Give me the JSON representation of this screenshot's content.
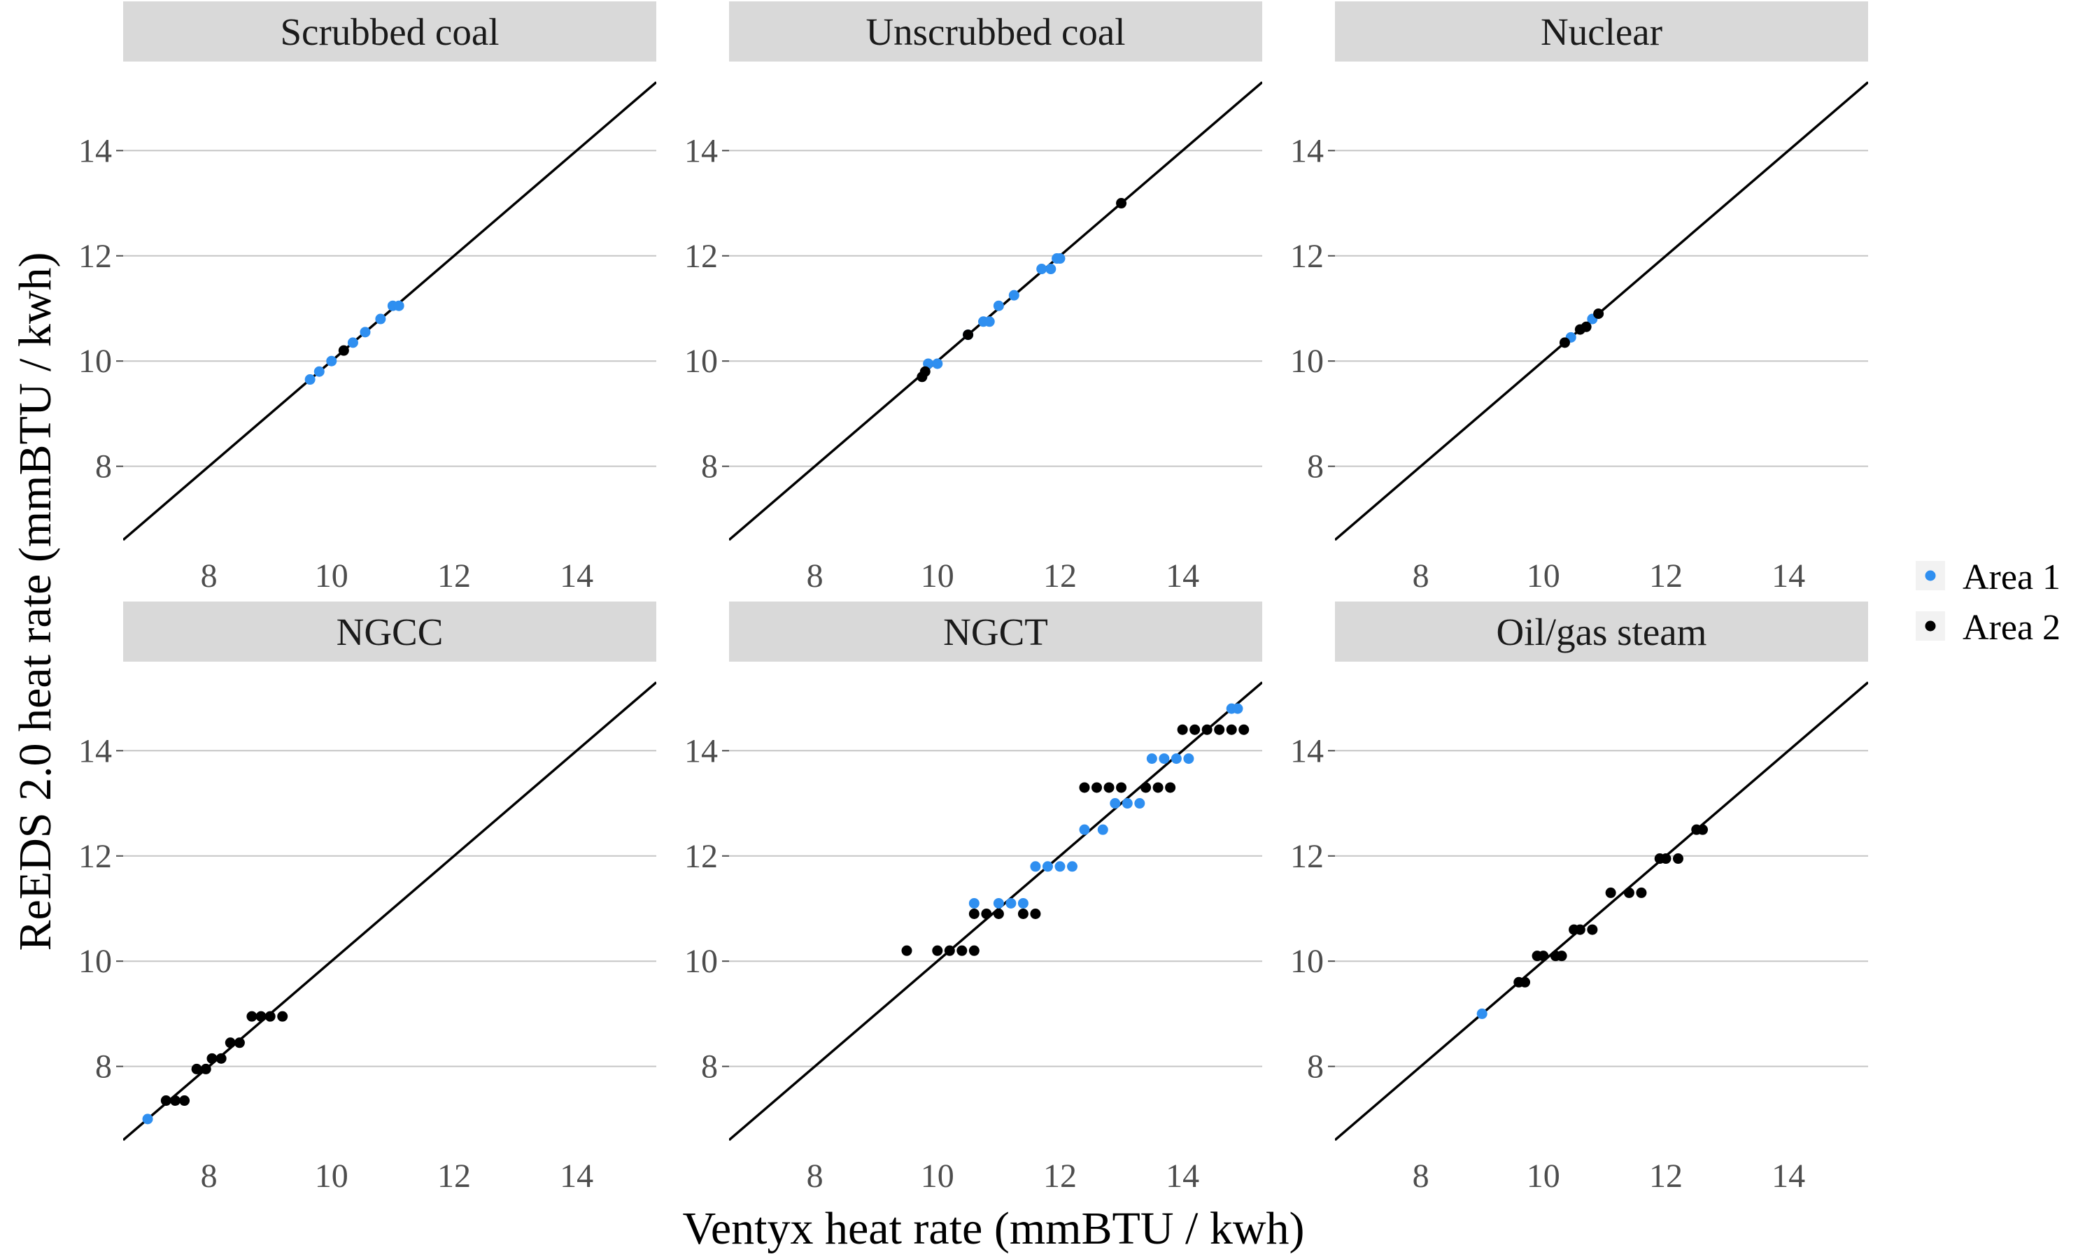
{
  "chart_data": {
    "type": "scatter",
    "xlabel": "Ventyx heat rate (mmBTU / kwh)",
    "ylabel": "ReEDS 2.0 heat rate (mmBTU / kwh)",
    "xlim": [
      6.6,
      15.3
    ],
    "ylim": [
      6.4,
      15.4
    ],
    "x_ticks": [
      8,
      10,
      12,
      14
    ],
    "y_ticks": [
      8,
      10,
      12,
      14
    ],
    "grid": "horizontal major lines",
    "reference_line": "y = x",
    "legend_position": "right",
    "series_style": [
      {
        "name": "Area 1",
        "color": "#2f8ff0"
      },
      {
        "name": "Area 2",
        "color": "#000000"
      }
    ],
    "panels": [
      {
        "title": "Scrubbed coal",
        "series": [
          {
            "name": "Area 1",
            "points": [
              [
                9.65,
                9.65
              ],
              [
                9.8,
                9.8
              ],
              [
                10.0,
                10.0
              ],
              [
                10.35,
                10.35
              ],
              [
                10.55,
                10.55
              ],
              [
                10.8,
                10.8
              ],
              [
                11.0,
                11.05
              ],
              [
                11.1,
                11.05
              ]
            ]
          },
          {
            "name": "Area 2",
            "points": [
              [
                10.2,
                10.2
              ]
            ]
          }
        ]
      },
      {
        "title": "Unscrubbed coal",
        "series": [
          {
            "name": "Area 1",
            "points": [
              [
                9.85,
                9.95
              ],
              [
                10.0,
                9.95
              ],
              [
                10.5,
                10.5
              ],
              [
                10.75,
                10.75
              ],
              [
                10.85,
                10.75
              ],
              [
                11.0,
                11.05
              ],
              [
                11.25,
                11.25
              ],
              [
                11.7,
                11.75
              ],
              [
                11.85,
                11.75
              ],
              [
                11.95,
                11.95
              ],
              [
                12.0,
                11.95
              ]
            ]
          },
          {
            "name": "Area 2",
            "points": [
              [
                9.75,
                9.7
              ],
              [
                9.8,
                9.8
              ],
              [
                10.5,
                10.5
              ],
              [
                13.0,
                13.0
              ]
            ]
          }
        ]
      },
      {
        "title": "Nuclear",
        "series": [
          {
            "name": "Area 1",
            "points": [
              [
                10.45,
                10.45
              ],
              [
                10.8,
                10.8
              ]
            ]
          },
          {
            "name": "Area 2",
            "points": [
              [
                10.35,
                10.35
              ],
              [
                10.6,
                10.6
              ],
              [
                10.7,
                10.65
              ],
              [
                10.9,
                10.9
              ]
            ]
          }
        ]
      },
      {
        "title": "NGCC",
        "series": [
          {
            "name": "Area 1",
            "points": [
              [
                7.0,
                7.0
              ]
            ]
          },
          {
            "name": "Area 2",
            "points": [
              [
                7.3,
                7.35
              ],
              [
                7.45,
                7.35
              ],
              [
                7.6,
                7.35
              ],
              [
                7.8,
                7.95
              ],
              [
                7.95,
                7.95
              ],
              [
                8.05,
                8.15
              ],
              [
                8.2,
                8.15
              ],
              [
                8.35,
                8.45
              ],
              [
                8.5,
                8.45
              ],
              [
                8.7,
                8.95
              ],
              [
                8.85,
                8.95
              ],
              [
                9.0,
                8.95
              ],
              [
                9.2,
                8.95
              ]
            ]
          }
        ]
      },
      {
        "title": "NGCT",
        "series": [
          {
            "name": "Area 1",
            "points": [
              [
                10.6,
                11.1
              ],
              [
                11.0,
                11.1
              ],
              [
                11.2,
                11.1
              ],
              [
                11.4,
                11.1
              ],
              [
                11.6,
                11.8
              ],
              [
                11.8,
                11.8
              ],
              [
                12.0,
                11.8
              ],
              [
                12.2,
                11.8
              ],
              [
                12.4,
                12.5
              ],
              [
                12.7,
                12.5
              ],
              [
                12.9,
                13.0
              ],
              [
                13.1,
                13.0
              ],
              [
                13.3,
                13.0
              ],
              [
                13.5,
                13.85
              ],
              [
                13.7,
                13.85
              ],
              [
                13.9,
                13.85
              ],
              [
                14.1,
                13.85
              ],
              [
                14.8,
                14.8
              ],
              [
                14.9,
                14.8
              ]
            ]
          },
          {
            "name": "Area 2",
            "points": [
              [
                9.5,
                10.2
              ],
              [
                10.0,
                10.2
              ],
              [
                10.2,
                10.2
              ],
              [
                10.4,
                10.2
              ],
              [
                10.6,
                10.2
              ],
              [
                10.6,
                10.9
              ],
              [
                10.8,
                10.9
              ],
              [
                11.0,
                10.9
              ],
              [
                11.4,
                10.9
              ],
              [
                11.6,
                10.9
              ],
              [
                12.4,
                13.3
              ],
              [
                12.6,
                13.3
              ],
              [
                12.8,
                13.3
              ],
              [
                13.0,
                13.3
              ],
              [
                13.4,
                13.3
              ],
              [
                13.6,
                13.3
              ],
              [
                13.8,
                13.3
              ],
              [
                14.0,
                14.4
              ],
              [
                14.2,
                14.4
              ],
              [
                14.4,
                14.4
              ],
              [
                14.6,
                14.4
              ],
              [
                14.8,
                14.4
              ],
              [
                15.0,
                14.4
              ]
            ]
          }
        ]
      },
      {
        "title": "Oil/gas steam",
        "series": [
          {
            "name": "Area 1",
            "points": [
              [
                9.0,
                9.0
              ]
            ]
          },
          {
            "name": "Area 2",
            "points": [
              [
                9.6,
                9.6
              ],
              [
                9.7,
                9.6
              ],
              [
                9.9,
                10.1
              ],
              [
                10.0,
                10.1
              ],
              [
                10.2,
                10.1
              ],
              [
                10.3,
                10.1
              ],
              [
                10.5,
                10.6
              ],
              [
                10.6,
                10.6
              ],
              [
                10.8,
                10.6
              ],
              [
                11.1,
                11.3
              ],
              [
                11.4,
                11.3
              ],
              [
                11.6,
                11.3
              ],
              [
                11.9,
                11.95
              ],
              [
                12.0,
                11.95
              ],
              [
                12.2,
                11.95
              ],
              [
                12.5,
                12.5
              ],
              [
                12.6,
                12.5
              ]
            ]
          }
        ]
      }
    ]
  }
}
